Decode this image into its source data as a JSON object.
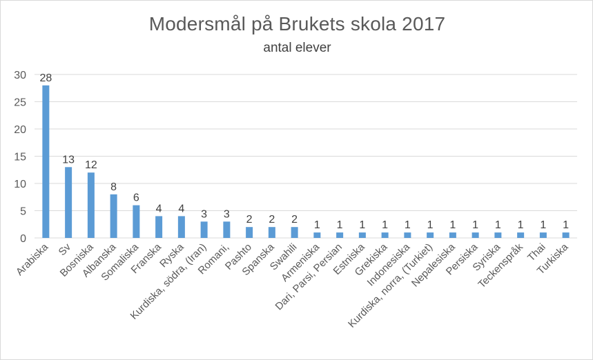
{
  "chart_data": {
    "type": "bar",
    "title": "Modersmål på Brukets skola 2017",
    "subtitle": "antal elever",
    "xlabel": "",
    "ylabel": "",
    "ylim": [
      0,
      30
    ],
    "yticks": [
      0,
      5,
      10,
      15,
      20,
      25,
      30
    ],
    "grid": true,
    "legend": "none",
    "bar_color": "#5b9bd5",
    "categories": [
      "Arabiska",
      "Sv",
      "Bosniska",
      "Albanska",
      "Somaliska",
      "Franska",
      "Ryska",
      "Kurdiska, södra, (Iran)",
      "Romani,",
      "Pashto",
      "Spanska",
      "Swahili",
      "Armeniska",
      "Dari, Parsi, Persian",
      "Estniska",
      "Grekiska",
      "Indonesiska",
      "Kurdiska, norra, (Turkiet)",
      "Nepalesiska",
      "Persiska",
      "Syriska",
      "Teckenspråk",
      "Thai",
      "Turkiska"
    ],
    "values": [
      28,
      13,
      12,
      8,
      6,
      4,
      4,
      3,
      3,
      2,
      2,
      2,
      1,
      1,
      1,
      1,
      1,
      1,
      1,
      1,
      1,
      1,
      1,
      1
    ]
  }
}
